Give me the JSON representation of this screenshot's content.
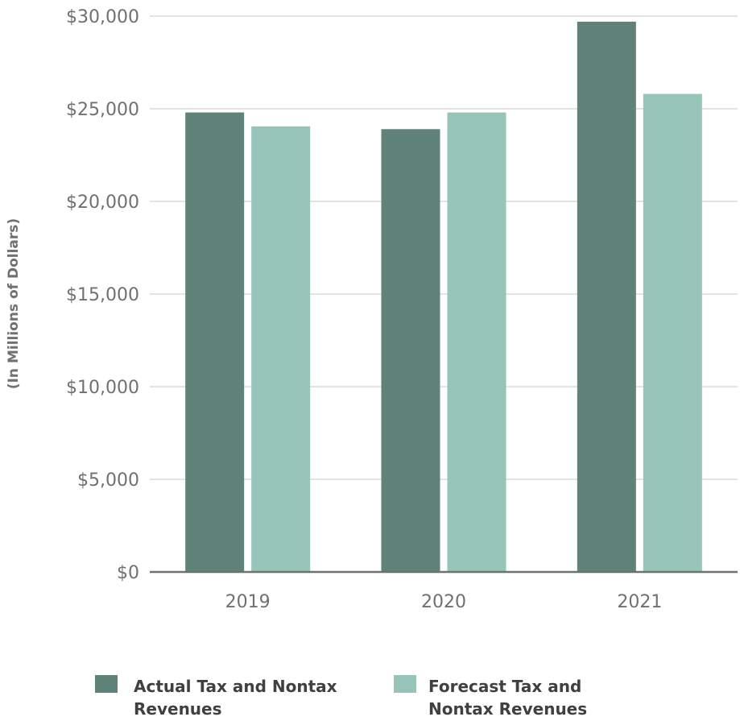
{
  "chart_data": {
    "type": "bar",
    "title": "",
    "xlabel": "",
    "ylabel": "(In Millions of Dollars)",
    "categories": [
      "2019",
      "2020",
      "2021"
    ],
    "series": [
      {
        "name": "Actual Tax and Nontax Revenues",
        "values": [
          24800,
          23900,
          29700
        ],
        "color": "#5f8279"
      },
      {
        "name": "Forecast Tax and Nontax Revenues",
        "values": [
          24050,
          24800,
          25800
        ],
        "color": "#97c4b8"
      }
    ],
    "ylim": [
      0,
      30000
    ],
    "yticks": [
      "$0",
      "$5,000",
      "$10,000",
      "$15,000",
      "$20,000",
      "$25,000",
      "$30,000"
    ],
    "grid": true,
    "legend": "bottom",
    "legend_labels": [
      [
        "Actual Tax and Nontax",
        "Revenues"
      ],
      [
        "Forecast Tax and",
        "Nontax Revenues"
      ]
    ]
  }
}
